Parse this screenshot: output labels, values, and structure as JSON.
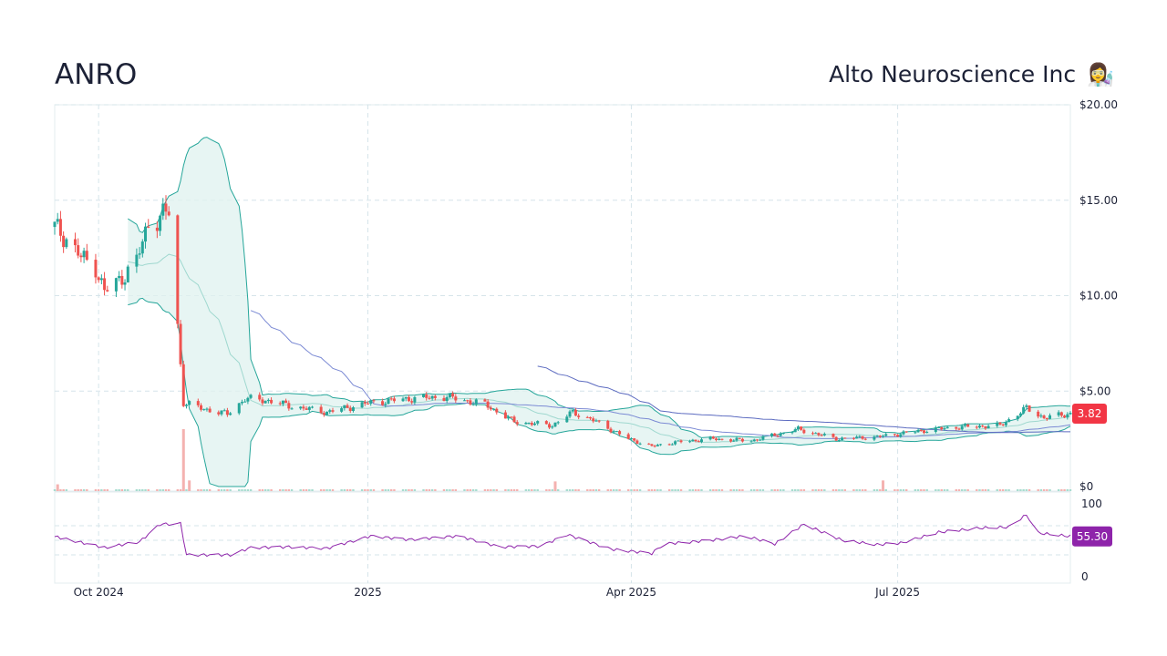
{
  "header": {
    "ticker": "ANRO",
    "company": "Alto Neuroscience Inc",
    "company_icon": "scientist-emoji-icon",
    "company_icon_glyph": "👩‍🔬"
  },
  "colors": {
    "up": "#26a69a",
    "down": "#ef5350",
    "band_fill": "#dff2ef",
    "band_line": "#26a69a",
    "ma_slow": "#5c6bc0",
    "ma_fast": "#7b8ad4",
    "rsi": "#8e24aa",
    "last_price_badge": "#f23645",
    "rsi_badge": "#8e24aa",
    "grid": "#d6e4ea"
  },
  "chart_data": {
    "type": "candlestick",
    "price_axis": {
      "ticks": [
        0,
        5,
        10,
        15,
        20
      ],
      "labels": [
        "$0",
        "$5.00",
        "$10.00",
        "$15.00",
        "$20.00"
      ],
      "ylim": [
        0,
        20
      ]
    },
    "rsi_axis": {
      "ticks": [
        0,
        100
      ],
      "labels": [
        "0",
        "100"
      ],
      "ylim": [
        0,
        100
      ]
    },
    "x_axis": {
      "start": "2024-09-16",
      "end": "2025-08-29",
      "ticks": [
        "2024-10-01",
        "2025-01-01",
        "2025-04-01",
        "2025-07-01"
      ],
      "labels": [
        "Oct 2024",
        "2025",
        "Apr 2025",
        "Jul 2025"
      ]
    },
    "last_price": "3.82",
    "last_price_value": 3.82,
    "rsi_last": "55.30",
    "rsi_last_value": 55.3,
    "price_keypoints": [
      [
        "2024-09-16",
        13.6
      ],
      [
        "2024-09-20",
        13.0
      ],
      [
        "2024-09-25",
        12.0
      ],
      [
        "2024-09-30",
        11.5
      ],
      [
        "2024-10-03",
        10.2
      ],
      [
        "2024-10-08",
        10.8
      ],
      [
        "2024-10-14",
        11.8
      ],
      [
        "2024-10-18",
        13.8
      ],
      [
        "2024-10-25",
        14.4
      ],
      [
        "2024-10-30",
        4.4
      ],
      [
        "2024-11-05",
        4.1
      ],
      [
        "2024-11-14",
        3.8
      ],
      [
        "2024-11-20",
        4.6
      ],
      [
        "2024-11-28",
        4.5
      ],
      [
        "2024-12-06",
        4.2
      ],
      [
        "2024-12-18",
        3.9
      ],
      [
        "2025-01-02",
        4.4
      ],
      [
        "2025-01-15",
        4.6
      ],
      [
        "2025-01-28",
        4.7
      ],
      [
        "2025-02-10",
        4.3
      ],
      [
        "2025-02-20",
        3.4
      ],
      [
        "2025-03-05",
        3.2
      ],
      [
        "2025-03-12",
        3.9
      ],
      [
        "2025-03-20",
        3.4
      ],
      [
        "2025-03-31",
        2.5
      ],
      [
        "2025-04-08",
        2.1
      ],
      [
        "2025-04-15",
        2.3
      ],
      [
        "2025-04-28",
        2.5
      ],
      [
        "2025-05-12",
        2.4
      ],
      [
        "2025-05-20",
        2.7
      ],
      [
        "2025-05-28",
        3.0
      ],
      [
        "2025-06-10",
        2.5
      ],
      [
        "2025-06-24",
        2.6
      ],
      [
        "2025-07-08",
        2.9
      ],
      [
        "2025-07-20",
        3.1
      ],
      [
        "2025-08-05",
        3.2
      ],
      [
        "2025-08-14",
        4.1
      ],
      [
        "2025-08-20",
        3.6
      ],
      [
        "2025-08-29",
        3.82
      ]
    ],
    "volume_spikes": [
      [
        "2024-09-17",
        0.35
      ],
      [
        "2024-10-30",
        3.2
      ],
      [
        "2024-11-01",
        0.55
      ],
      [
        "2025-03-06",
        0.5
      ],
      [
        "2025-06-26",
        0.55
      ]
    ],
    "rsi_keypoints": [
      [
        "2024-09-16",
        55
      ],
      [
        "2024-09-25",
        47
      ],
      [
        "2024-10-03",
        40
      ],
      [
        "2024-10-15",
        48
      ],
      [
        "2024-10-22",
        72
      ],
      [
        "2024-10-29",
        73
      ],
      [
        "2024-10-31",
        30
      ],
      [
        "2024-11-15",
        30
      ],
      [
        "2024-11-22",
        40
      ],
      [
        "2024-12-05",
        41
      ],
      [
        "2024-12-18",
        39
      ],
      [
        "2025-01-02",
        56
      ],
      [
        "2025-01-15",
        51
      ],
      [
        "2025-02-01",
        56
      ],
      [
        "2025-02-15",
        41
      ],
      [
        "2025-03-01",
        42
      ],
      [
        "2025-03-10",
        58
      ],
      [
        "2025-03-25",
        38
      ],
      [
        "2025-04-08",
        32
      ],
      [
        "2025-04-12",
        45
      ],
      [
        "2025-04-28",
        50
      ],
      [
        "2025-05-10",
        56
      ],
      [
        "2025-05-20",
        45
      ],
      [
        "2025-05-30",
        72
      ],
      [
        "2025-06-12",
        50
      ],
      [
        "2025-06-24",
        44
      ],
      [
        "2025-07-02",
        46
      ],
      [
        "2025-07-15",
        61
      ],
      [
        "2025-07-30",
        67
      ],
      [
        "2025-08-08",
        68
      ],
      [
        "2025-08-14",
        85
      ],
      [
        "2025-08-18",
        60
      ],
      [
        "2025-08-29",
        55.3
      ]
    ]
  }
}
